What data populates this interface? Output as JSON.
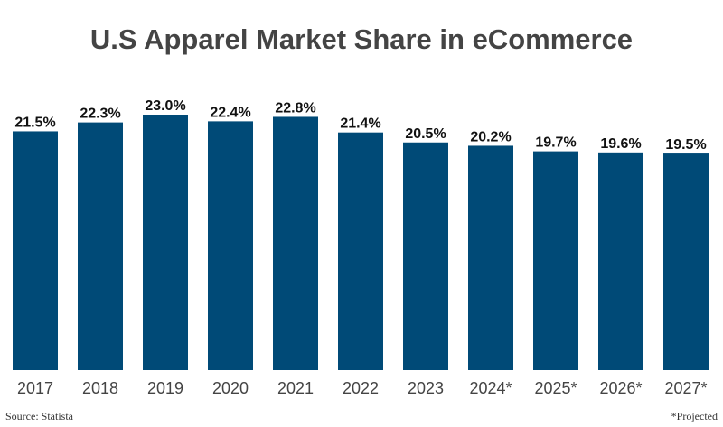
{
  "chart_data": {
    "type": "bar",
    "title": "U.S Apparel Market Share in eCommerce",
    "categories": [
      "2017",
      "2018",
      "2019",
      "2020",
      "2021",
      "2022",
      "2023",
      "2024*",
      "2025*",
      "2026*",
      "2027*"
    ],
    "values": [
      21.5,
      22.3,
      23.0,
      22.4,
      22.8,
      21.4,
      20.5,
      20.2,
      19.7,
      19.6,
      19.5
    ],
    "data_labels": [
      "21.5%",
      "22.3%",
      "23.0%",
      "22.4%",
      "22.8%",
      "21.4%",
      "20.5%",
      "20.2%",
      "19.7%",
      "19.6%",
      "19.5%"
    ],
    "ylim": [
      0,
      23
    ],
    "xlabel": "",
    "ylabel": "",
    "grid": false,
    "bar_color": "#004a77"
  },
  "footer": {
    "source": "Source: Statista",
    "note": "*Projected"
  }
}
